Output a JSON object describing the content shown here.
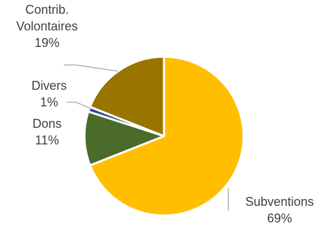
{
  "chart_data": {
    "type": "pie",
    "title": "",
    "slices": [
      {
        "label_lines": [
          "Subventions"
        ],
        "pct": "69%",
        "value": 69,
        "color": "#ffbf00"
      },
      {
        "label_lines": [
          "Dons"
        ],
        "pct": "11%",
        "value": 11,
        "color": "#4b6b2a"
      },
      {
        "label_lines": [
          "Divers"
        ],
        "pct": "1%",
        "value": 1,
        "color": "#2e4a8c"
      },
      {
        "label_lines": [
          "Contrib.",
          "Volontaires"
        ],
        "pct": "19%",
        "value": 19,
        "color": "#9a7400"
      }
    ],
    "labels_outside_with_leader_lines": true,
    "legend": "none"
  }
}
